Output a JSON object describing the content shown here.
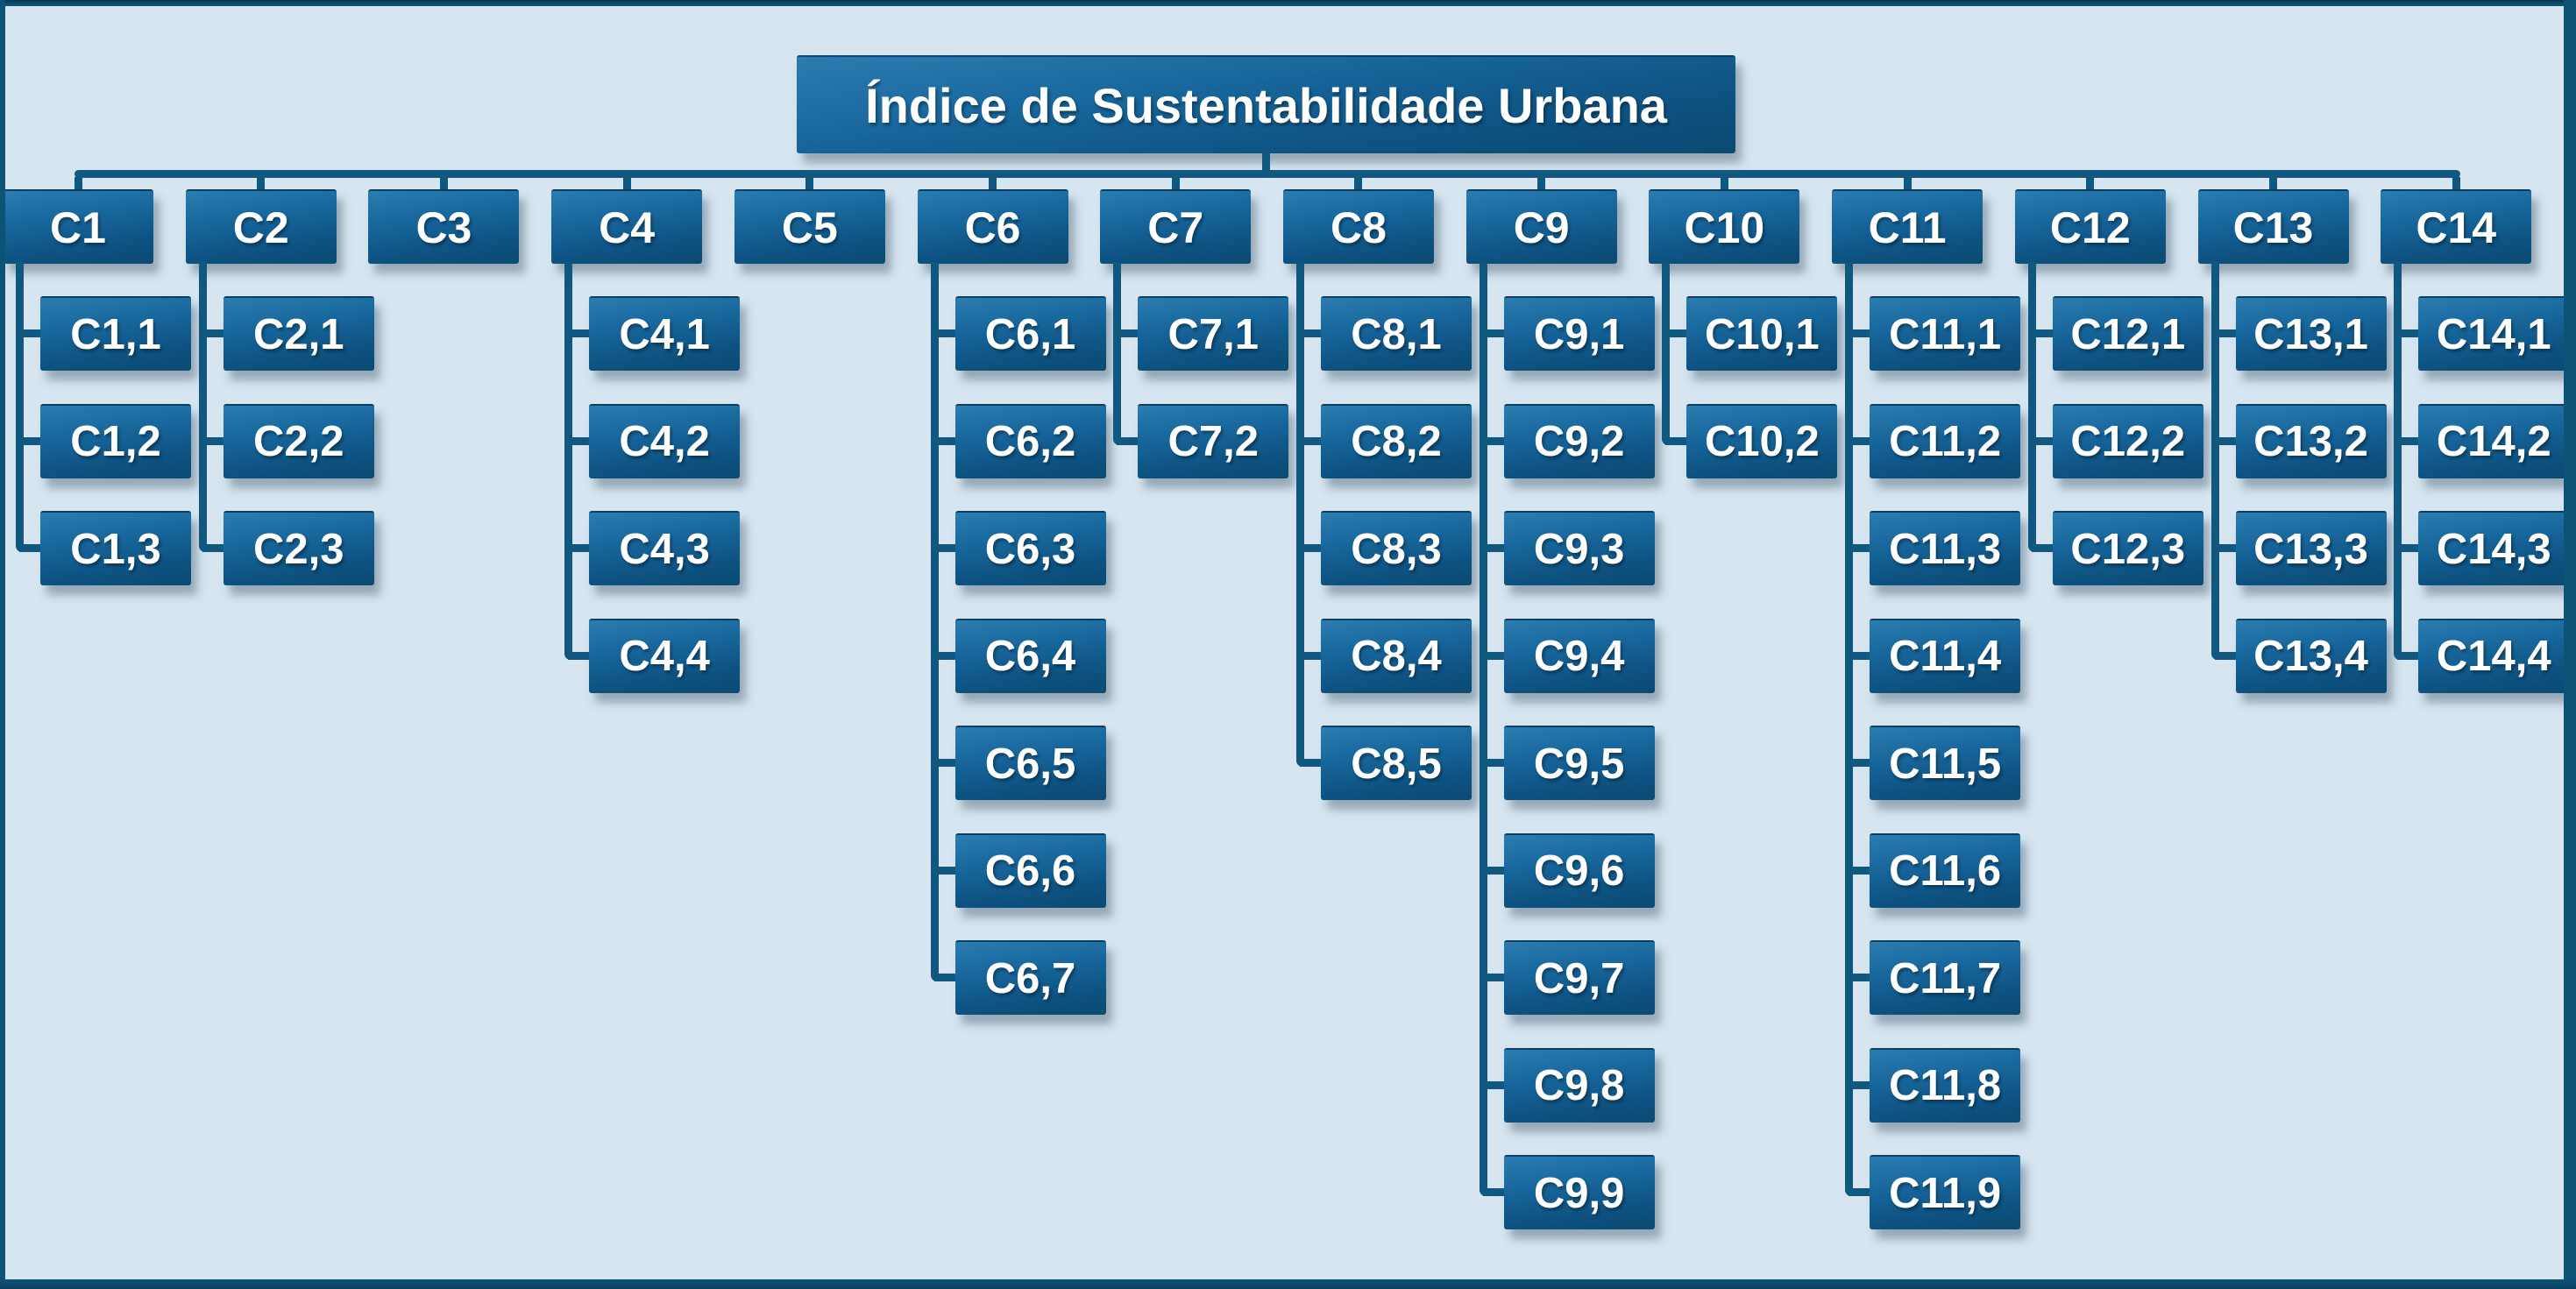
{
  "title": "Índice de Sustentabilidade Urbana",
  "root": {
    "label": "Índice de Sustentabilidade Urbana"
  },
  "nodes": [
    {
      "label": "C1",
      "children": [
        "C1,1",
        "C1,2",
        "C1,3"
      ]
    },
    {
      "label": "C2",
      "children": [
        "C2,1",
        "C2,2",
        "C2,3"
      ]
    },
    {
      "label": "C3",
      "children": []
    },
    {
      "label": "C4",
      "children": [
        "C4,1",
        "C4,2",
        "C4,3",
        "C4,4"
      ]
    },
    {
      "label": "C5",
      "children": []
    },
    {
      "label": "C6",
      "children": [
        "C6,1",
        "C6,2",
        "C6,3",
        "C6,4",
        "C6,5",
        "C6,6",
        "C6,7"
      ]
    },
    {
      "label": "C7",
      "children": [
        "C7,1",
        "C7,2"
      ]
    },
    {
      "label": "C8",
      "children": [
        "C8,1",
        "C8,2",
        "C8,3",
        "C8,4",
        "C8,5"
      ]
    },
    {
      "label": "C9",
      "children": [
        "C9,1",
        "C9,2",
        "C9,3",
        "C9,4",
        "C9,5",
        "C9,6",
        "C9,7",
        "C9,8",
        "C9,9"
      ]
    },
    {
      "label": "C10",
      "children": [
        "C10,1",
        "C10,2"
      ]
    },
    {
      "label": "C11",
      "children": [
        "C11,1",
        "C11,2",
        "C11,3",
        "C11,4",
        "C11,5",
        "C11,6",
        "C11,7",
        "C11,8",
        "C11,9"
      ]
    },
    {
      "label": "C12",
      "children": [
        "C12,1",
        "C12,2",
        "C12,3"
      ]
    },
    {
      "label": "C13",
      "children": [
        "C13,1",
        "C13,2",
        "C13,3",
        "C13,4"
      ]
    },
    {
      "label": "C14",
      "children": [
        "C14,1",
        "C14,2",
        "C14,3",
        "C14,4"
      ]
    }
  ],
  "colors": {
    "background": "#d6e5f0",
    "frame": "#0d5277",
    "connector": "#115880",
    "box_gradient_top": "#2c7cb1",
    "box_gradient_bottom": "#0b4a72",
    "text": "#ffffff"
  }
}
